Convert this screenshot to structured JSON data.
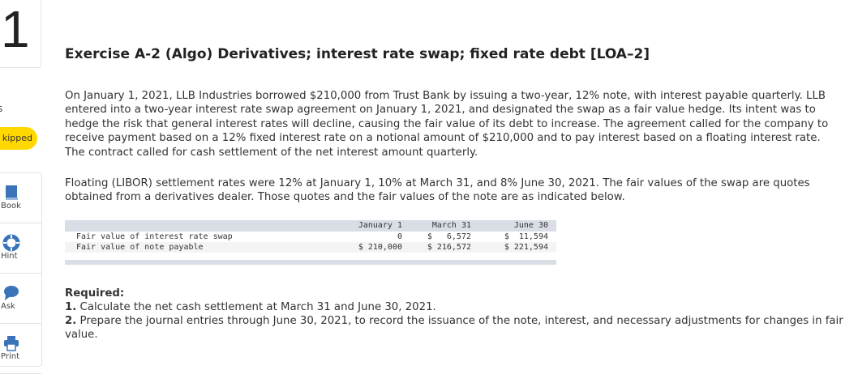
{
  "sidebar": {
    "question_number": "1",
    "points_suffix": "s",
    "status_badge": "kipped",
    "tools": [
      {
        "label": "Book",
        "icon": "book-icon"
      },
      {
        "label": "Hint",
        "icon": "lifebuoy-icon"
      },
      {
        "label": "Ask",
        "icon": "speech-bubble-icon"
      },
      {
        "label": "Print",
        "icon": "printer-icon"
      }
    ],
    "accent_color": "#3b73b9",
    "badge_color": "#ffd800"
  },
  "exercise": {
    "title": "Exercise A-2 (Algo) Derivatives; interest rate swap; fixed rate debt [LOA–2]",
    "paragraph1": "On January 1, 2021, LLB Industries borrowed $210,000 from Trust Bank by issuing a two-year, 12% note, with interest payable quarterly. LLB entered into a two-year interest rate swap agreement on January 1, 2021, and designated the swap as a fair value hedge. Its intent was to hedge the risk that general interest rates will decline, causing the fair value of its debt to increase. The agreement called for the company to receive payment based on a 12% fixed interest rate on a notional amount of $210,000 and to pay interest based on a floating interest rate. The contract called for cash settlement of the net interest amount quarterly.",
    "paragraph2": "Floating (LIBOR) settlement rates were 12% at January 1, 10% at March 31, and 8% June 30, 2021. The fair values of the swap are quotes obtained from a derivatives dealer. Those quotes and the fair values of the note are as indicated below.",
    "table": {
      "headers": [
        "",
        "January 1",
        "March 31",
        "June 30"
      ],
      "rows": [
        [
          "Fair value of interest rate swap",
          "0",
          "$   6,572",
          "$  11,594"
        ],
        [
          "Fair value of note payable",
          "$ 210,000",
          "$ 216,572",
          "$ 221,594"
        ]
      ]
    },
    "required": {
      "heading": "Required:",
      "items": [
        {
          "num": "1.",
          "text": "Calculate the net cash settlement at March 31 and June 30, 2021."
        },
        {
          "num": "2.",
          "text": "Prepare the journal entries through June 30, 2021, to record the issuance of the note, interest, and necessary adjustments for changes in fair value."
        }
      ]
    }
  }
}
